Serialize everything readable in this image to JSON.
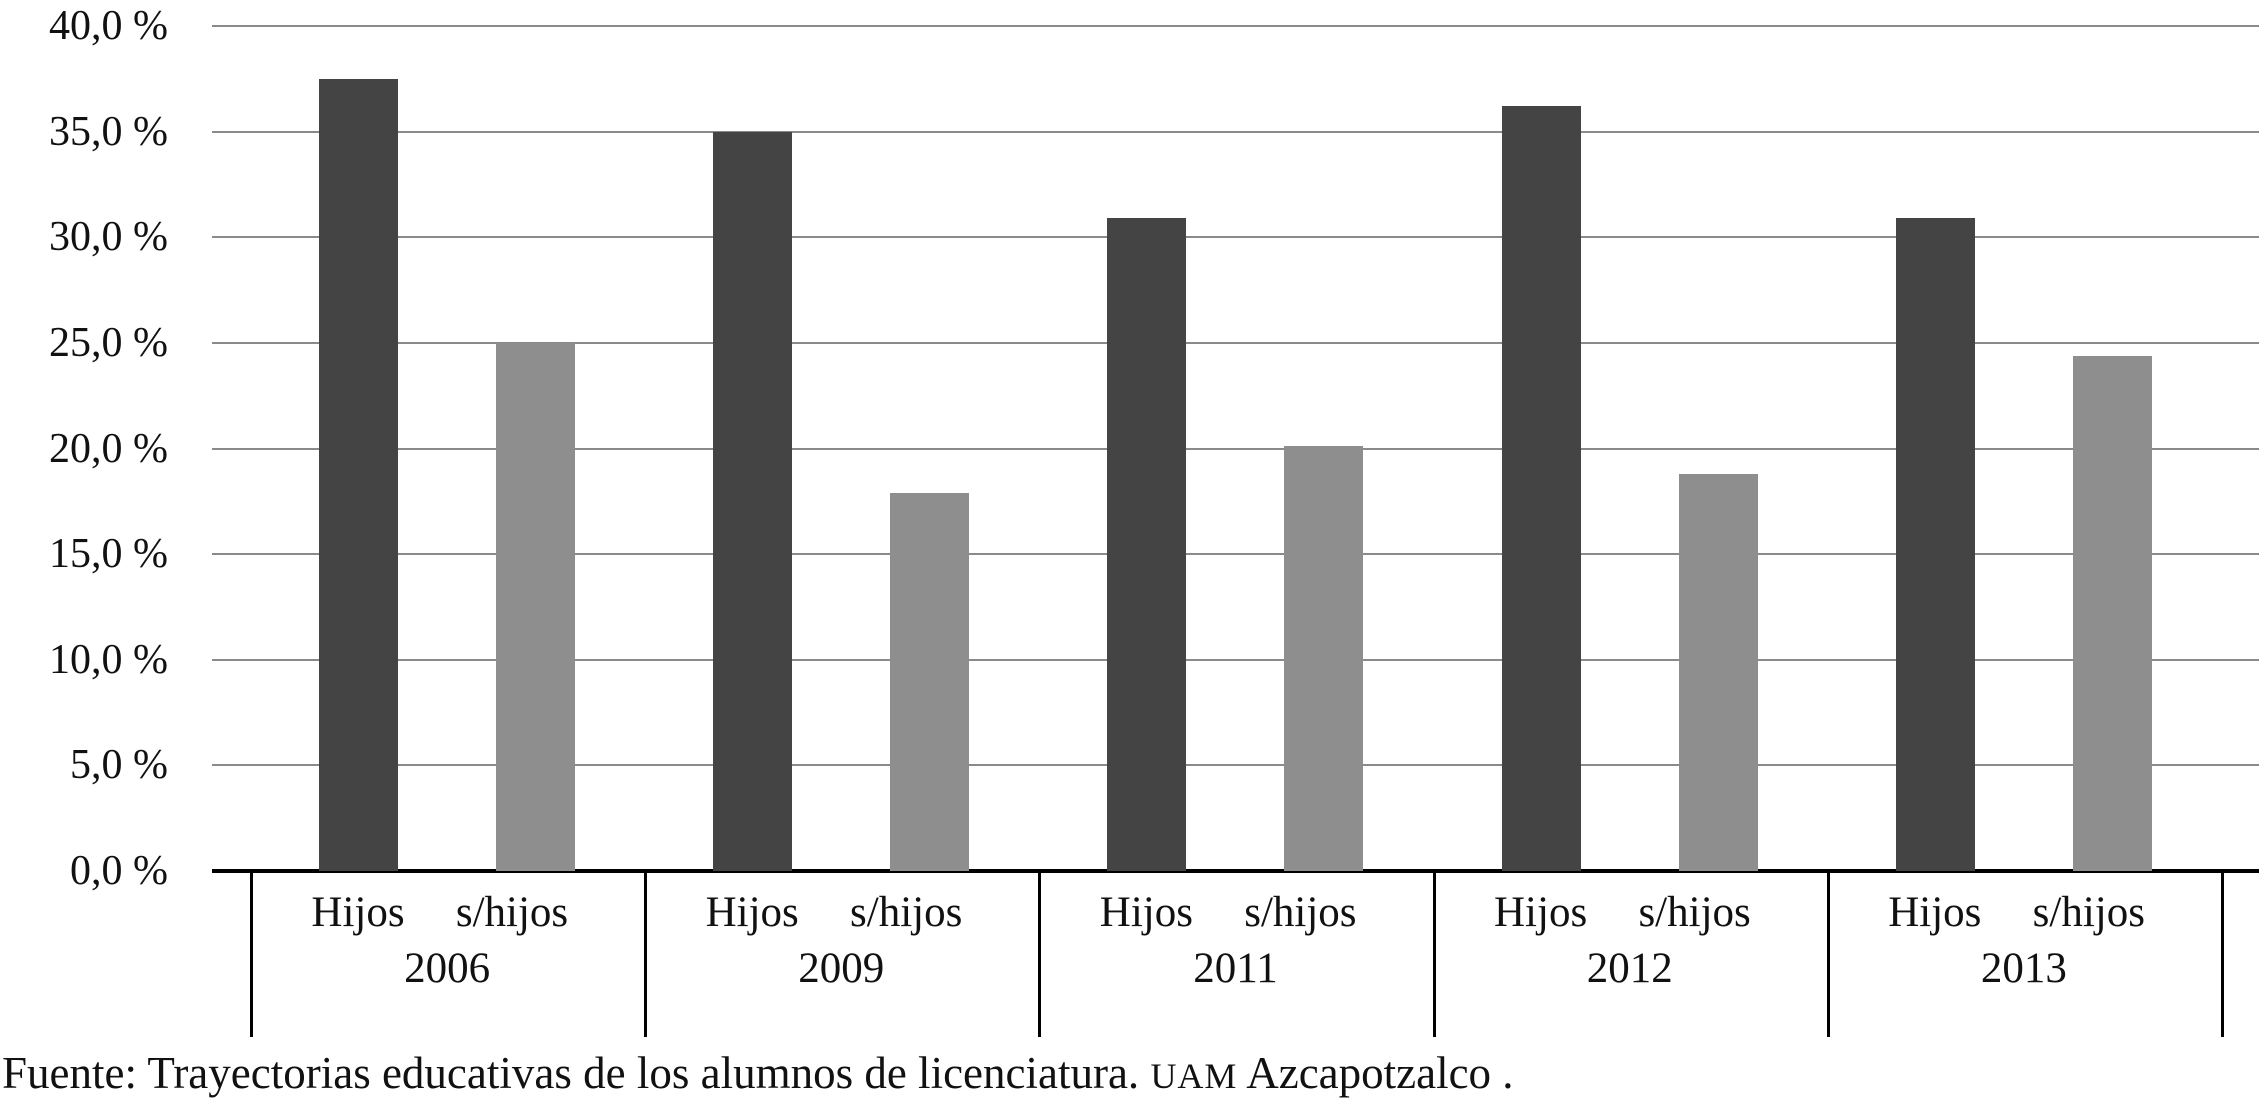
{
  "chart_data": {
    "type": "bar",
    "title": "",
    "categories": [
      "2006",
      "2009",
      "2011",
      "2012",
      "2013"
    ],
    "series": [
      {
        "name": "Hijos",
        "color": "#444444",
        "values": [
          37.5,
          35.0,
          30.9,
          36.2,
          30.9
        ]
      },
      {
        "name": "s/hijos",
        "color": "#8e8e8e",
        "values": [
          25.0,
          17.9,
          20.1,
          18.8,
          24.4
        ]
      }
    ],
    "bar_labels": [
      "Hijos",
      "s/hijos"
    ],
    "y_axis": {
      "unit": "%",
      "min": 0,
      "max": 40,
      "step": 5,
      "tick_values": [
        40,
        35,
        30,
        25,
        20,
        15,
        10,
        5,
        0
      ],
      "tick_labels": [
        "40,0 %",
        "35,0 %",
        "30,0 %",
        "25,0 %",
        "20,0 %",
        "15,0 %",
        "10,0 %",
        "5,0 %",
        "0,0 %"
      ]
    },
    "grid": true,
    "legend_position": "none",
    "colors": {
      "grid": "#8a8a8a",
      "axis": "#000000",
      "text": "#111111",
      "background": "#ffffff"
    }
  },
  "source_note": {
    "prefix": "Fuente: Trayectorias educativas de los alumnos de licenciatura. ",
    "acronym": "UAM",
    "suffix": " Azcapotzalco ."
  }
}
